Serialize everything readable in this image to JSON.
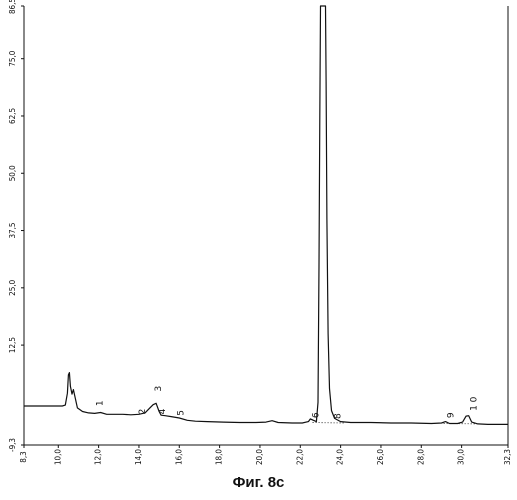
{
  "caption": "Фиг. 8с",
  "chart_data": {
    "type": "line",
    "title": "",
    "xlabel": "",
    "ylabel": "",
    "xlim": [
      8.3,
      32.3
    ],
    "ylim": [
      -9.3,
      86.5
    ],
    "x_ticks": [
      {
        "value": 8.3,
        "label": "8,3"
      },
      {
        "value": 10.0,
        "label": "10,0"
      },
      {
        "value": 12.0,
        "label": "12,0"
      },
      {
        "value": 14.0,
        "label": "14,0"
      },
      {
        "value": 16.0,
        "label": "16,0"
      },
      {
        "value": 18.0,
        "label": "18,0"
      },
      {
        "value": 20.0,
        "label": "20,0"
      },
      {
        "value": 22.0,
        "label": "22,0"
      },
      {
        "value": 24.0,
        "label": "24,0"
      },
      {
        "value": 26.0,
        "label": "26,0"
      },
      {
        "value": 28.0,
        "label": "28,0"
      },
      {
        "value": 30.0,
        "label": "30,0"
      },
      {
        "value": 32.3,
        "label": "32,3"
      }
    ],
    "y_ticks": [
      {
        "value": 86.5,
        "label": "86,5"
      },
      {
        "value": 75.0,
        "label": "75,0"
      },
      {
        "value": 62.5,
        "label": "62,5"
      },
      {
        "value": 50.0,
        "label": "50,0"
      },
      {
        "value": 37.5,
        "label": "37,5"
      },
      {
        "value": 25.0,
        "label": "25,0"
      },
      {
        "value": 12.5,
        "label": "12,5"
      },
      {
        "value": -9.3,
        "label": "-9,3"
      }
    ],
    "series": [
      {
        "color": "#111111",
        "points": [
          [
            8.3,
            -0.8
          ],
          [
            10.2,
            -0.8
          ],
          [
            10.35,
            -0.6
          ],
          [
            10.45,
            2.0
          ],
          [
            10.5,
            6.0
          ],
          [
            10.55,
            6.5
          ],
          [
            10.6,
            3.5
          ],
          [
            10.68,
            1.8
          ],
          [
            10.75,
            2.8
          ],
          [
            10.82,
            1.4
          ],
          [
            10.95,
            -1.2
          ],
          [
            11.2,
            -2.0
          ],
          [
            11.5,
            -2.3
          ],
          [
            11.8,
            -2.4
          ],
          [
            12.1,
            -2.2
          ],
          [
            12.4,
            -2.6
          ],
          [
            12.8,
            -2.6
          ],
          [
            13.2,
            -2.6
          ],
          [
            13.6,
            -2.7
          ],
          [
            14.0,
            -2.6
          ],
          [
            14.3,
            -2.3
          ],
          [
            14.5,
            -1.4
          ],
          [
            14.7,
            -0.5
          ],
          [
            14.85,
            -0.2
          ],
          [
            15.0,
            -2.0
          ],
          [
            15.1,
            -2.8
          ],
          [
            15.3,
            -2.9
          ],
          [
            15.6,
            -3.1
          ],
          [
            16.0,
            -3.4
          ],
          [
            16.4,
            -3.9
          ],
          [
            16.8,
            -4.1
          ],
          [
            17.4,
            -4.2
          ],
          [
            18.2,
            -4.3
          ],
          [
            19.0,
            -4.4
          ],
          [
            19.8,
            -4.4
          ],
          [
            20.3,
            -4.3
          ],
          [
            20.6,
            -4.0
          ],
          [
            20.9,
            -4.4
          ],
          [
            21.6,
            -4.5
          ],
          [
            22.1,
            -4.5
          ],
          [
            22.4,
            -4.2
          ],
          [
            22.5,
            -3.6
          ],
          [
            22.65,
            -3.9
          ],
          [
            22.8,
            -4.2
          ],
          [
            22.88,
            0.0
          ],
          [
            22.93,
            30.0
          ],
          [
            22.97,
            62.0
          ],
          [
            23.0,
            86.5
          ],
          [
            23.25,
            86.5
          ],
          [
            23.28,
            70.0
          ],
          [
            23.32,
            40.0
          ],
          [
            23.38,
            15.0
          ],
          [
            23.45,
            3.0
          ],
          [
            23.55,
            -1.8
          ],
          [
            23.7,
            -3.5
          ],
          [
            24.0,
            -4.2
          ],
          [
            24.5,
            -4.4
          ],
          [
            25.5,
            -4.4
          ],
          [
            26.5,
            -4.5
          ],
          [
            27.5,
            -4.5
          ],
          [
            28.5,
            -4.6
          ],
          [
            29.0,
            -4.5
          ],
          [
            29.2,
            -4.2
          ],
          [
            29.4,
            -4.6
          ],
          [
            29.8,
            -4.6
          ],
          [
            30.05,
            -4.3
          ],
          [
            30.22,
            -3.0
          ],
          [
            30.35,
            -2.9
          ],
          [
            30.5,
            -4.3
          ],
          [
            30.8,
            -4.7
          ],
          [
            31.3,
            -4.8
          ],
          [
            32.3,
            -4.8
          ]
        ]
      }
    ],
    "peak_labels": [
      {
        "label": "1",
        "x": 12.2,
        "y": -0.2
      },
      {
        "label": "2",
        "x": 14.3,
        "y": -2.0
      },
      {
        "label": "3",
        "x": 15.1,
        "y": 3.0
      },
      {
        "label": "4",
        "x": 15.3,
        "y": -2.0
      },
      {
        "label": "5",
        "x": 16.2,
        "y": -2.3
      },
      {
        "label": "6",
        "x": 22.9,
        "y": -2.8
      },
      {
        "label": "8",
        "x": 24.0,
        "y": -3.0
      },
      {
        "label": "9",
        "x": 29.6,
        "y": -2.8
      },
      {
        "label": "1 0",
        "x": 30.75,
        "y": -0.3
      }
    ]
  }
}
